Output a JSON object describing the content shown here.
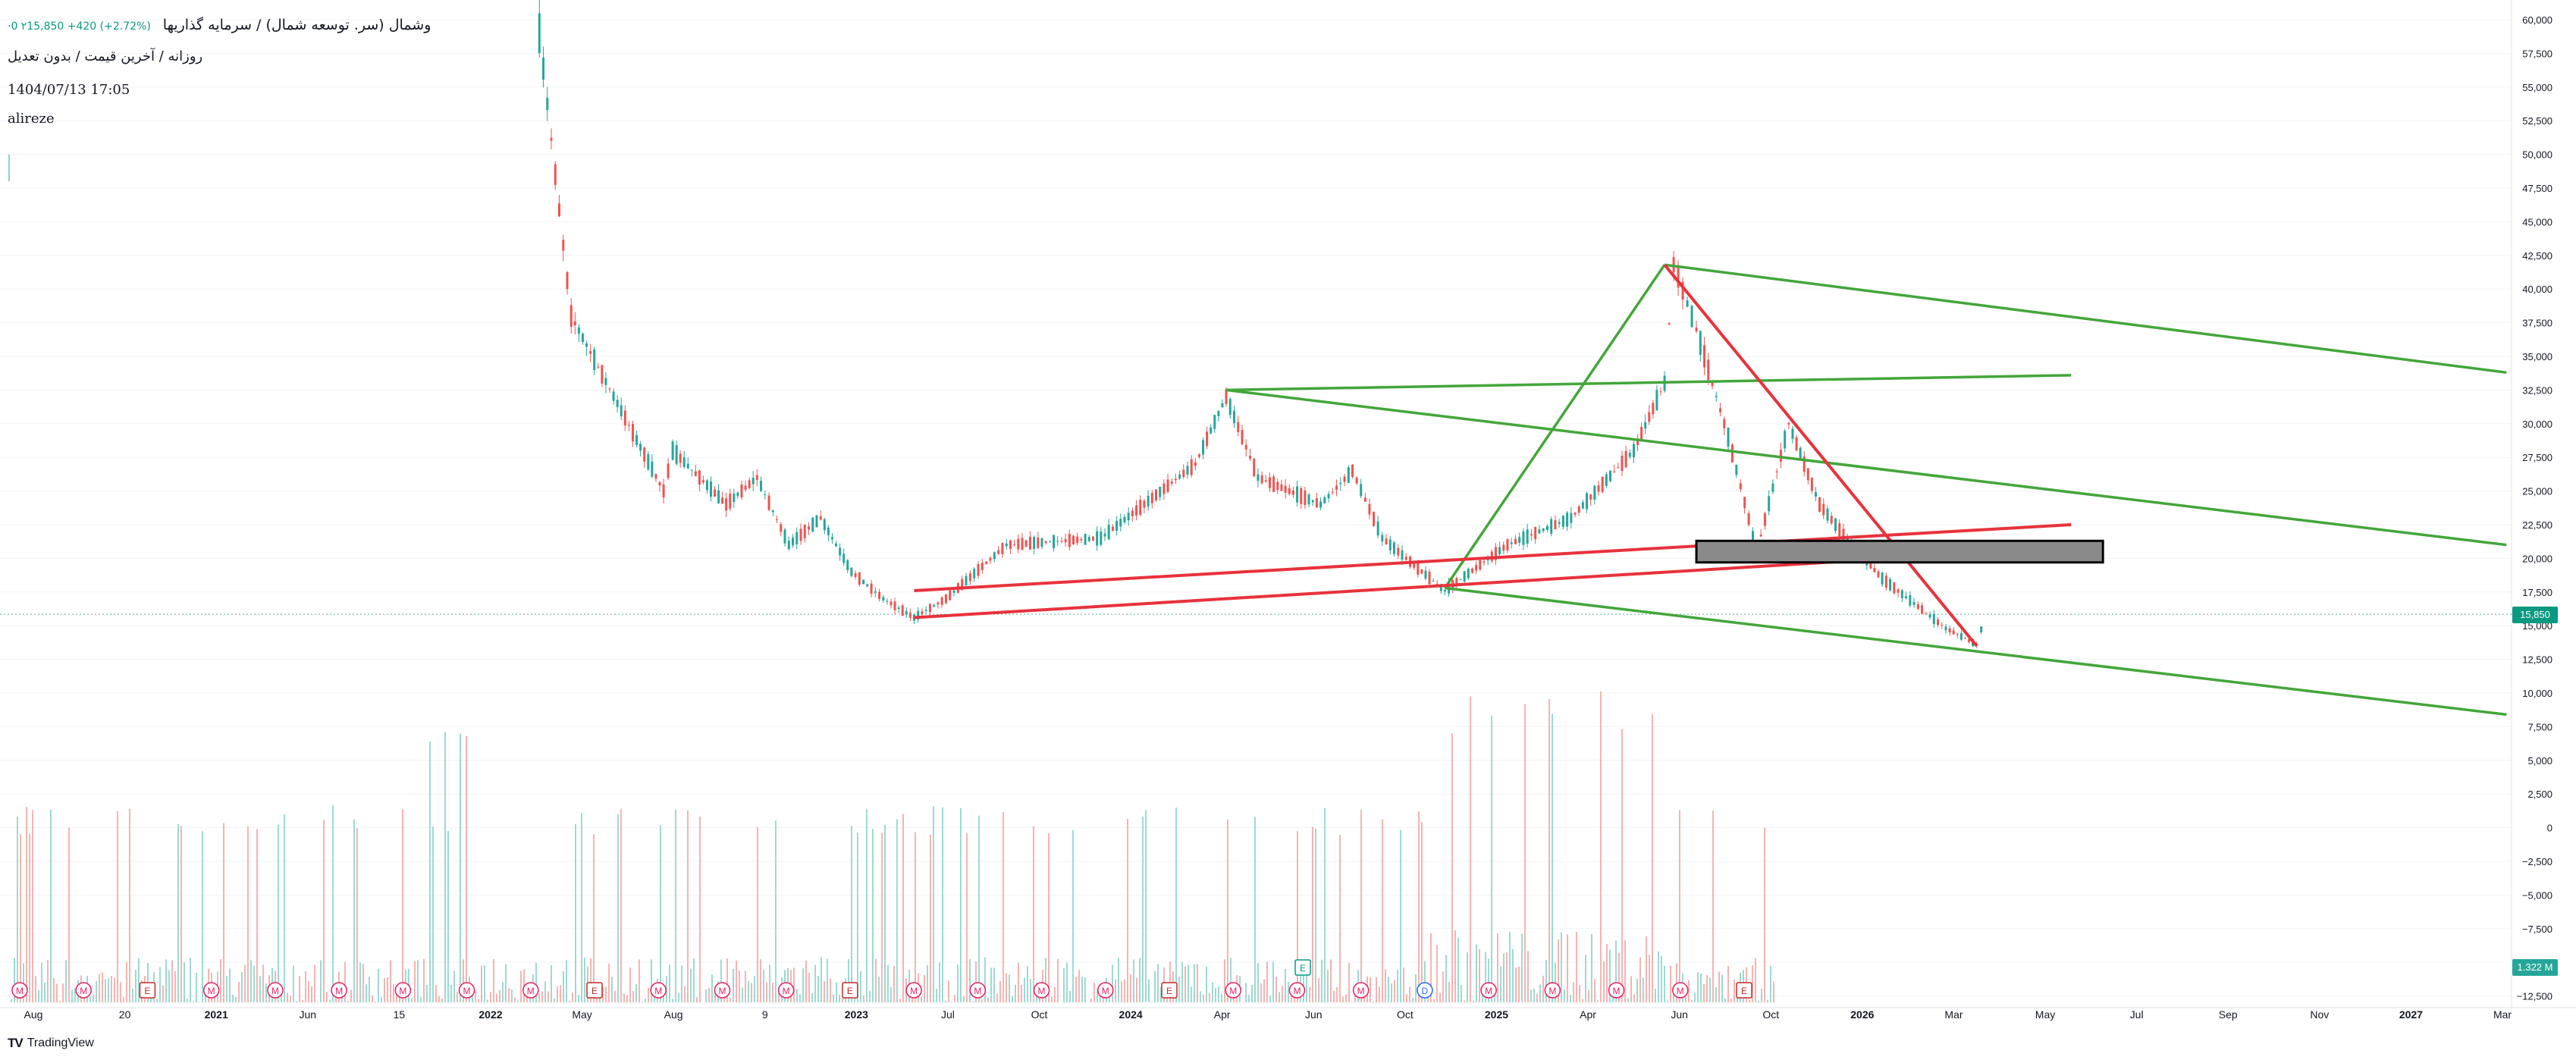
{
  "header": {
    "symbol_title": "وشمال (سر. توسعه شمال) / سرمایه گذاریها",
    "quote_text": "·0  ۲15,850  +420 (+2.72%)",
    "interval_text": "روزانه / آخرین قیمت / بدون تعدیل",
    "timestamp": "1404/07/13 17:05",
    "user": "alireze"
  },
  "branding": {
    "logo_mark": "TV",
    "logo_text": "TradingView"
  },
  "price_axis": {
    "ticks": [
      "60,000",
      "57,500",
      "55,000",
      "52,500",
      "50,000",
      "47,500",
      "45,000",
      "42,500",
      "40,000",
      "37,500",
      "35,000",
      "32,500",
      "30,000",
      "27,500",
      "25,000",
      "22,500",
      "20,000",
      "17,500",
      "15,000",
      "12,500",
      "10,000",
      "7,500",
      "5,000",
      "2,500",
      "0",
      "−2,500",
      "−5,000",
      "−7,500",
      "−10,000",
      "−12,500"
    ],
    "last_price_label": "15,850",
    "volume_label": "1.322 M"
  },
  "time_axis": {
    "labels": [
      {
        "text": "Aug",
        "bold": false
      },
      {
        "text": "20",
        "bold": false
      },
      {
        "text": "2021",
        "bold": true
      },
      {
        "text": "Jun",
        "bold": false
      },
      {
        "text": "15",
        "bold": false
      },
      {
        "text": "2022",
        "bold": true
      },
      {
        "text": "May",
        "bold": false
      },
      {
        "text": "Aug",
        "bold": false
      },
      {
        "text": "9",
        "bold": false
      },
      {
        "text": "2023",
        "bold": true
      },
      {
        "text": "Jul",
        "bold": false
      },
      {
        "text": "Oct",
        "bold": false
      },
      {
        "text": "2024",
        "bold": true
      },
      {
        "text": "Apr",
        "bold": false
      },
      {
        "text": "Jun",
        "bold": false
      },
      {
        "text": "Oct",
        "bold": false
      },
      {
        "text": "2025",
        "bold": true
      },
      {
        "text": "Apr",
        "bold": false
      },
      {
        "text": "Jun",
        "bold": false
      },
      {
        "text": "Oct",
        "bold": false
      },
      {
        "text": "2026",
        "bold": true
      },
      {
        "text": "Mar",
        "bold": false
      },
      {
        "text": "May",
        "bold": false
      },
      {
        "text": "Jul",
        "bold": false
      },
      {
        "text": "Sep",
        "bold": false
      },
      {
        "text": "Nov",
        "bold": false
      },
      {
        "text": "2027",
        "bold": true
      },
      {
        "text": "Mar",
        "bold": false
      }
    ]
  },
  "event_markers": [
    "M",
    "M",
    "E",
    "M",
    "M",
    "M",
    "M",
    "M",
    "M",
    "E",
    "M",
    "M",
    "M",
    "E",
    "M",
    "M",
    "M",
    "M",
    "E",
    "M",
    "M",
    "M",
    "D",
    "M",
    "M",
    "M",
    "M",
    "E"
  ],
  "event_marker_above": "E",
  "colors": {
    "up": "#26a69a",
    "down": "#ef5350",
    "green_line": "#43a63a",
    "red_line": "#e8323c",
    "box_fill": "#8a8a8a",
    "accent": "#089981",
    "marker_m": "#e91e63",
    "marker_e": "#c62828",
    "marker_d": "#2962ff"
  },
  "chart_data": {
    "type": "candlestick",
    "y_range": [
      -12500,
      60000
    ],
    "x_range": [
      "2020-07",
      "2027-03"
    ],
    "last_price": 15850,
    "price_path": [
      [
        "2021-12",
        59000
      ],
      [
        "2022-01",
        38000
      ],
      [
        "2022-04",
        25000
      ],
      [
        "2022-04",
        28000
      ],
      [
        "2022-06",
        24000
      ],
      [
        "2022-07",
        26000
      ],
      [
        "2022-08",
        21000
      ],
      [
        "2022-09",
        23000
      ],
      [
        "2022-10",
        19000
      ],
      [
        "2022-11",
        17000
      ],
      [
        "2022-12",
        15600
      ],
      [
        "2023-01",
        17000
      ],
      [
        "2023-03",
        21000
      ],
      [
        "2023-06",
        21500
      ],
      [
        "2023-09",
        27000
      ],
      [
        "2023-10",
        32000
      ],
      [
        "2023-11",
        26000
      ],
      [
        "2024-01",
        24000
      ],
      [
        "2024-02",
        26500
      ],
      [
        "2024-03",
        21500
      ],
      [
        "2024-04",
        19500
      ],
      [
        "2024-05",
        17600
      ],
      [
        "2024-07",
        21000
      ],
      [
        "2024-09",
        23000
      ],
      [
        "2024-11",
        28000
      ],
      [
        "2024-12",
        33000
      ],
      [
        "2024-12",
        41800
      ],
      [
        "2025-01",
        37000
      ],
      [
        "2025-02",
        29000
      ],
      [
        "2025-03",
        20500
      ],
      [
        "2025-04",
        30000
      ],
      [
        "2025-05",
        24000
      ],
      [
        "2025-06",
        21000
      ],
      [
        "2025-07",
        18500
      ],
      [
        "2025-09",
        14800
      ],
      [
        "2025-10",
        13600
      ],
      [
        "2025-10",
        15850
      ]
    ],
    "drawings": [
      {
        "kind": "trendline",
        "color": "green",
        "points": [
          [
            "2023-10",
            32500
          ],
          [
            "2026-01",
            33600
          ]
        ]
      },
      {
        "kind": "trendline",
        "color": "green",
        "points": [
          [
            "2024-05",
            17800
          ],
          [
            "2024-12",
            41800
          ]
        ]
      },
      {
        "kind": "trendline",
        "color": "green",
        "points": [
          [
            "2024-12",
            41800
          ],
          [
            "2027-03",
            33800
          ]
        ]
      },
      {
        "kind": "trendline",
        "color": "green",
        "points": [
          [
            "2023-10",
            32500
          ],
          [
            "2027-03",
            21000
          ]
        ]
      },
      {
        "kind": "trendline",
        "color": "green",
        "points": [
          [
            "2024-05",
            17800
          ],
          [
            "2027-03",
            8400
          ]
        ]
      },
      {
        "kind": "trendline",
        "color": "red",
        "points": [
          [
            "2024-12",
            41800
          ],
          [
            "2025-10",
            13500
          ]
        ]
      },
      {
        "kind": "trendline",
        "color": "red",
        "points": [
          [
            "2022-12",
            17600
          ],
          [
            "2026-01",
            22500
          ]
        ]
      },
      {
        "kind": "trendline",
        "color": "red",
        "points": [
          [
            "2022-12",
            15600
          ],
          [
            "2026-01",
            20800
          ]
        ]
      },
      {
        "kind": "rectangle",
        "color": "gray",
        "points": [
          [
            "2025-01",
            21300
          ],
          [
            "2026-02",
            19700
          ]
        ]
      }
    ]
  }
}
